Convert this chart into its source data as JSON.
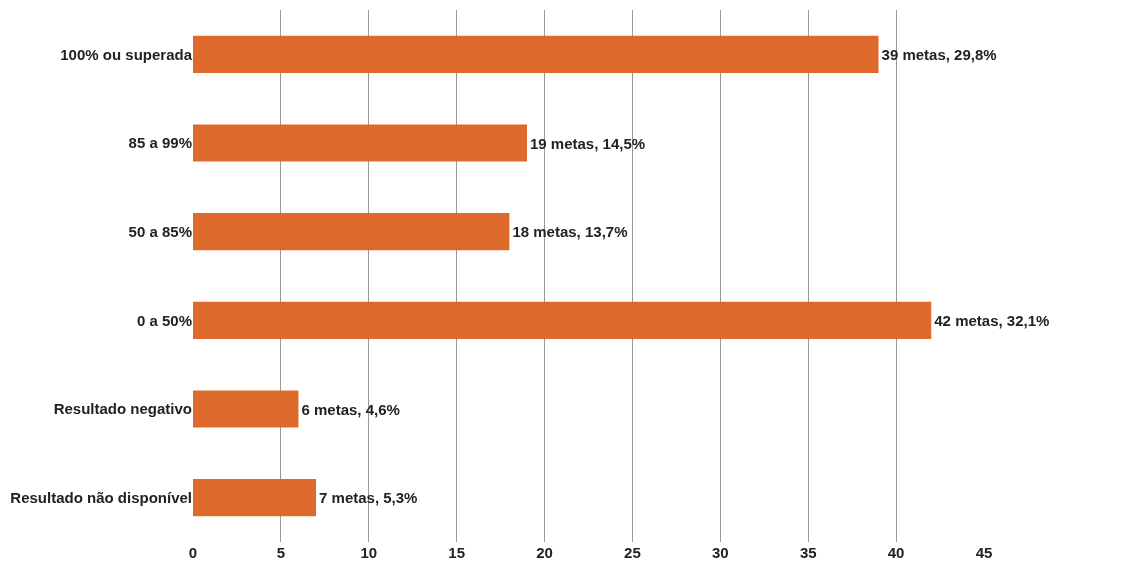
{
  "chart_data": {
    "type": "bar",
    "orientation": "horizontal",
    "categories": [
      "100% ou superada",
      "85 a 99%",
      "50 a 85%",
      "0 a 50%",
      "Resultado negativo",
      "Resultado não disponível"
    ],
    "values": [
      39,
      19,
      18,
      42,
      6,
      7
    ],
    "value_labels": [
      "39 metas, 29,8%",
      "19 metas, 14,5%",
      "18 metas, 13,7%",
      "42 metas, 32,1%",
      "6 metas, 4,6%",
      "7 metas, 5,3%"
    ],
    "color": "#dd6a2a",
    "xlim": [
      0,
      45
    ],
    "xticks": [
      0,
      5,
      10,
      15,
      20,
      25,
      30,
      35,
      40,
      45
    ],
    "grid": "x"
  }
}
